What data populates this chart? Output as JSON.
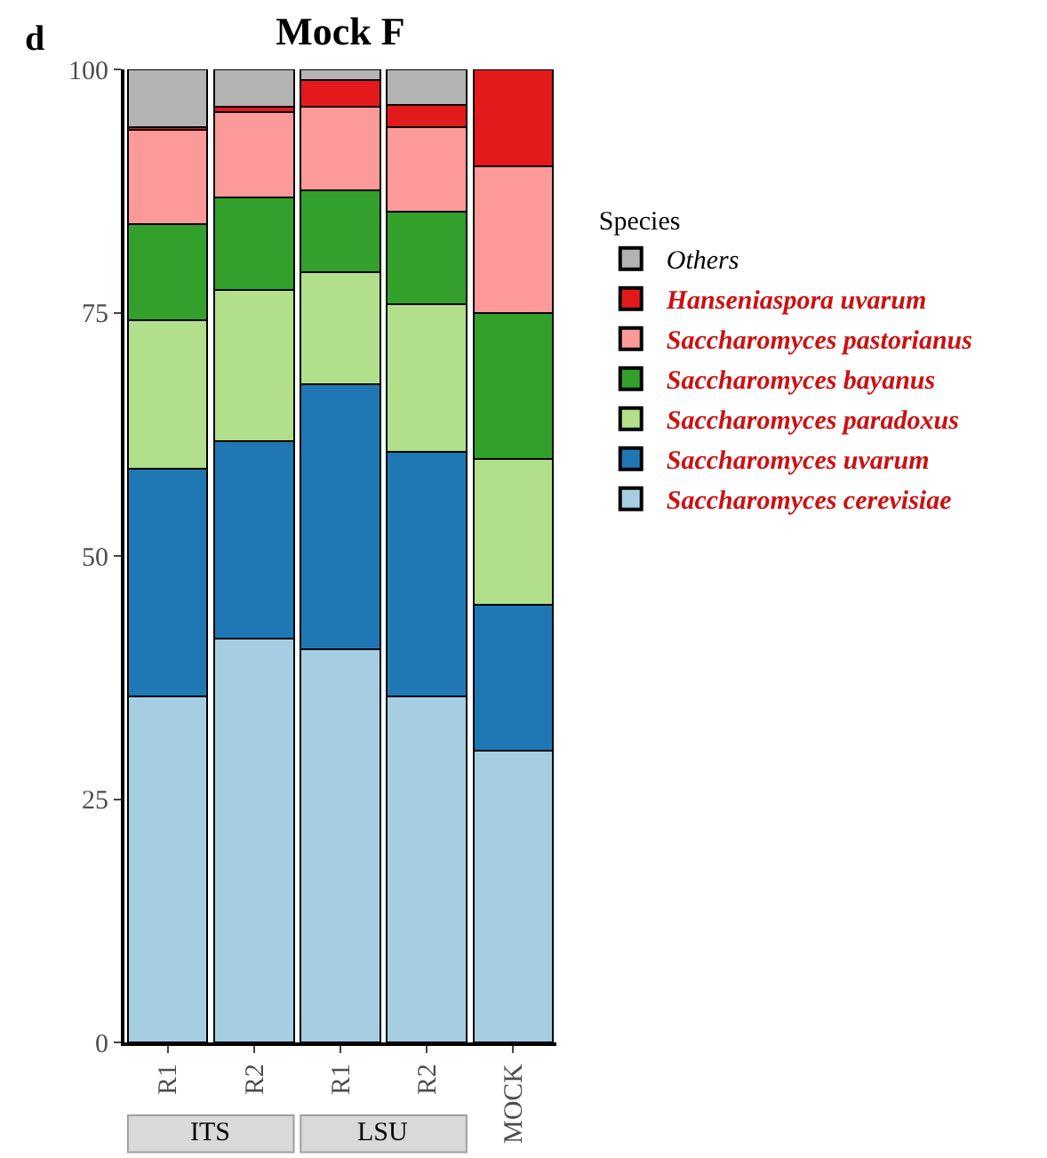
{
  "chart_data": {
    "type": "bar",
    "title": "Mock F",
    "stacked": true,
    "categories": [
      "R1",
      "R2",
      "R1",
      "R2",
      "MOCK"
    ],
    "series": [
      {
        "name": "Saccharomyces cerevisiae",
        "color": "#a6cee3",
        "values": [
          35.6,
          41.5,
          40.4,
          35.6,
          30
        ]
      },
      {
        "name": "Saccharomyces uvarum",
        "color": "#1f78b4",
        "values": [
          23.4,
          20.3,
          27.2,
          25.1,
          15
        ]
      },
      {
        "name": "Saccharomyces paradoxus",
        "color": "#b2df8a",
        "values": [
          15.2,
          15.5,
          11.6,
          15.2,
          15
        ]
      },
      {
        "name": "Saccharomyces bayanus",
        "color": "#33a02c",
        "values": [
          9.9,
          9.5,
          8.4,
          9.5,
          15
        ]
      },
      {
        "name": "Saccharomyces pastorianus",
        "color": "#fb9a99",
        "values": [
          9.7,
          8.8,
          8.6,
          8.7,
          15
        ]
      },
      {
        "name": "Hanseniaspora uvarum",
        "color": "#e31a1c",
        "values": [
          0.3,
          0.6,
          2.7,
          2.2,
          10
        ]
      },
      {
        "name": "Others",
        "color": "#b3b3b3",
        "values": [
          5.9,
          3.8,
          1.1,
          3.7,
          null
        ]
      }
    ],
    "legend_title": "Species",
    "legend": "right",
    "ylim": [
      0,
      100
    ],
    "yticks": [
      0,
      25,
      50,
      75,
      100
    ],
    "annotations": [
      "d",
      "ITS",
      "LSU"
    ]
  }
}
